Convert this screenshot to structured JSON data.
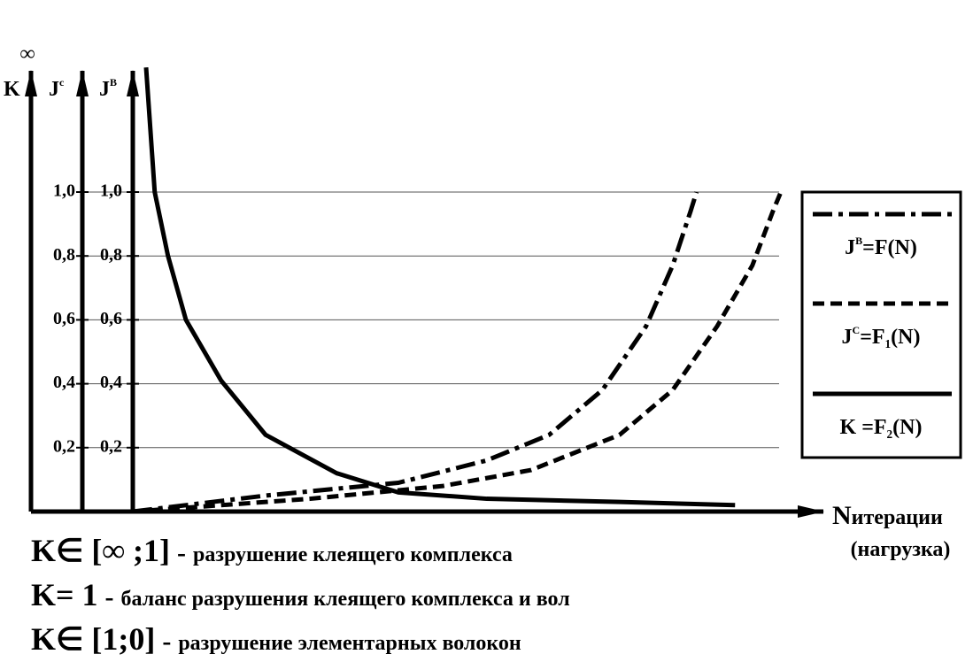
{
  "chart_data": {
    "type": "line",
    "y_axis_labels": [
      [
        {
          "text": "K"
        },
        {
          "text": "∞",
          "pos": "over"
        }
      ],
      [
        {
          "text": "J"
        },
        {
          "text": "c",
          "pos": "sup"
        }
      ],
      [
        {
          "text": "J"
        },
        {
          "text": "В",
          "pos": "sup"
        }
      ]
    ],
    "x_label_parts": [
      {
        "text": "N",
        "pos": "big"
      },
      {
        "text": "итерации"
      }
    ],
    "x_label_line2": "(нагрузка)",
    "xlim": [
      0,
      100
    ],
    "ylim": [
      0,
      1.4
    ],
    "yticks": [
      {
        "value": 0.2,
        "label": "0,2"
      },
      {
        "value": 0.4,
        "label": "0,4"
      },
      {
        "value": 0.6,
        "label": "0,6"
      },
      {
        "value": 0.8,
        "label": "0,8"
      },
      {
        "value": 1,
        "label": "1,0"
      }
    ],
    "y2ticks": [
      {
        "value": 0.2,
        "label": "0,2"
      },
      {
        "value": 0.4,
        "label": "0,4"
      },
      {
        "value": 0.6,
        "label": "0,6"
      },
      {
        "value": 0.8,
        "label": "0,8"
      },
      {
        "value": 1,
        "label": "1,0"
      }
    ],
    "grid": true,
    "legend": "right",
    "series": [
      {
        "name_parts": [
          {
            "text": "J"
          },
          {
            "text": "В",
            "pos": "sup"
          },
          {
            "text": "=F(N)"
          }
        ],
        "color": "#000000",
        "style": "dashdot",
        "x": [
          0,
          20,
          40,
          53.3,
          62.7,
          70.7,
          77.3,
          81.3,
          84,
          84.9
        ],
        "values": [
          0,
          0.05,
          0.09,
          0.16,
          0.24,
          0.38,
          0.58,
          0.77,
          0.94,
          1
        ]
      },
      {
        "name_parts": [
          {
            "text": "J"
          },
          {
            "text": "C",
            "pos": "sup"
          },
          {
            "text": "=F"
          },
          {
            "text": "1",
            "pos": "sub"
          },
          {
            "text": "(N)"
          }
        ],
        "color": "#000000",
        "style": "dashed",
        "x": [
          0,
          26.7,
          46.7,
          60,
          73.3,
          81.3,
          88,
          93.3,
          96.4,
          97.6
        ],
        "values": [
          0,
          0.04,
          0.08,
          0.13,
          0.24,
          0.38,
          0.58,
          0.77,
          0.94,
          1
        ]
      },
      {
        "name_parts": [
          {
            "text": "K =F"
          },
          {
            "text": "2",
            "pos": "sub"
          },
          {
            "text": "(N)"
          }
        ],
        "color": "#000000",
        "style": "solid",
        "x": [
          2,
          3.3,
          5.3,
          8,
          13.3,
          20,
          30.7,
          40,
          53.3,
          73.3,
          90.7
        ],
        "values": [
          1.39,
          1,
          0.8,
          0.6,
          0.41,
          0.24,
          0.12,
          0.06,
          0.04,
          0.03,
          0.02
        ]
      }
    ],
    "notes": [
      {
        "formula": "K∈ [∞ ;1]",
        "dash": "-",
        "text": "разрушение клеящего комплекса"
      },
      {
        "formula": "K= 1",
        "dash": "-",
        "text": "баланс разрушения клеящего комплекса и вол"
      },
      {
        "formula": "K∈ [1;0]",
        "dash": "-",
        "text": "разрушение элементарных волокон"
      }
    ]
  }
}
